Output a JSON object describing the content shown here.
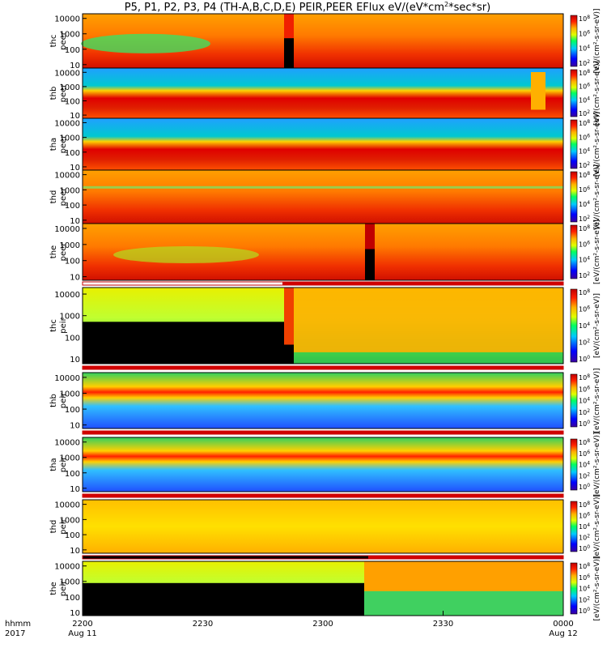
{
  "chart_data": {
    "type": "heatmap",
    "title": "P5, P1, P2, P3, P4 (TH-A,B,C,D,E) PEIR,PEER EFlux eV/(eV*cm",
    "title_sup": "2",
    "title_tail": "*sec*sr)",
    "x_axis": {
      "label_line1": "hhmm",
      "label_line2": "2017",
      "ticks": [
        "2200",
        "2230",
        "2300",
        "2330",
        "0000"
      ],
      "date_labels": [
        "Aug 11",
        "Aug 12"
      ],
      "range": [
        "2017-08-11 22:00",
        "2017-08-12 00:00"
      ]
    },
    "y_axis": {
      "scale": "log",
      "range": [
        6,
        20000
      ],
      "ticks": [
        "10",
        "100",
        "1000",
        "10000"
      ],
      "unit": "eV"
    },
    "colorbar": {
      "scale": "log",
      "ticks_upper": [
        "10",
        "10",
        "10",
        "10"
      ],
      "exps_upper": [
        "2",
        "4",
        "6",
        "8"
      ],
      "ticks_lower": [
        "10",
        "10",
        "10",
        "10",
        "10"
      ],
      "exps_lower": [
        "0",
        "2",
        "4",
        "6",
        "8"
      ]
    },
    "colorbar_label": "[eV/(cm²-s-sr-eV)]",
    "panels": [
      {
        "label": "thc\npeer",
        "l1": "thc",
        "l2": "peer"
      },
      {
        "label": "thb\npeer",
        "l1": "thb",
        "l2": "peer"
      },
      {
        "label": "tha\npeer",
        "l1": "tha",
        "l2": "peer"
      },
      {
        "label": "thd\npeer",
        "l1": "thd",
        "l2": "peer"
      },
      {
        "label": "the\npeer",
        "l1": "the",
        "l2": "peer"
      },
      {
        "label": "thc\npeir",
        "l1": "thc",
        "l2": "peir"
      },
      {
        "label": "thb\npeir",
        "l1": "thb",
        "l2": "peir"
      },
      {
        "label": "tha\npeir",
        "l1": "tha",
        "l2": "peir"
      },
      {
        "label": "thd\npeir",
        "l1": "thd",
        "l2": "peir"
      },
      {
        "label": "the\npeir",
        "l1": "the",
        "l2": "peir"
      }
    ]
  }
}
